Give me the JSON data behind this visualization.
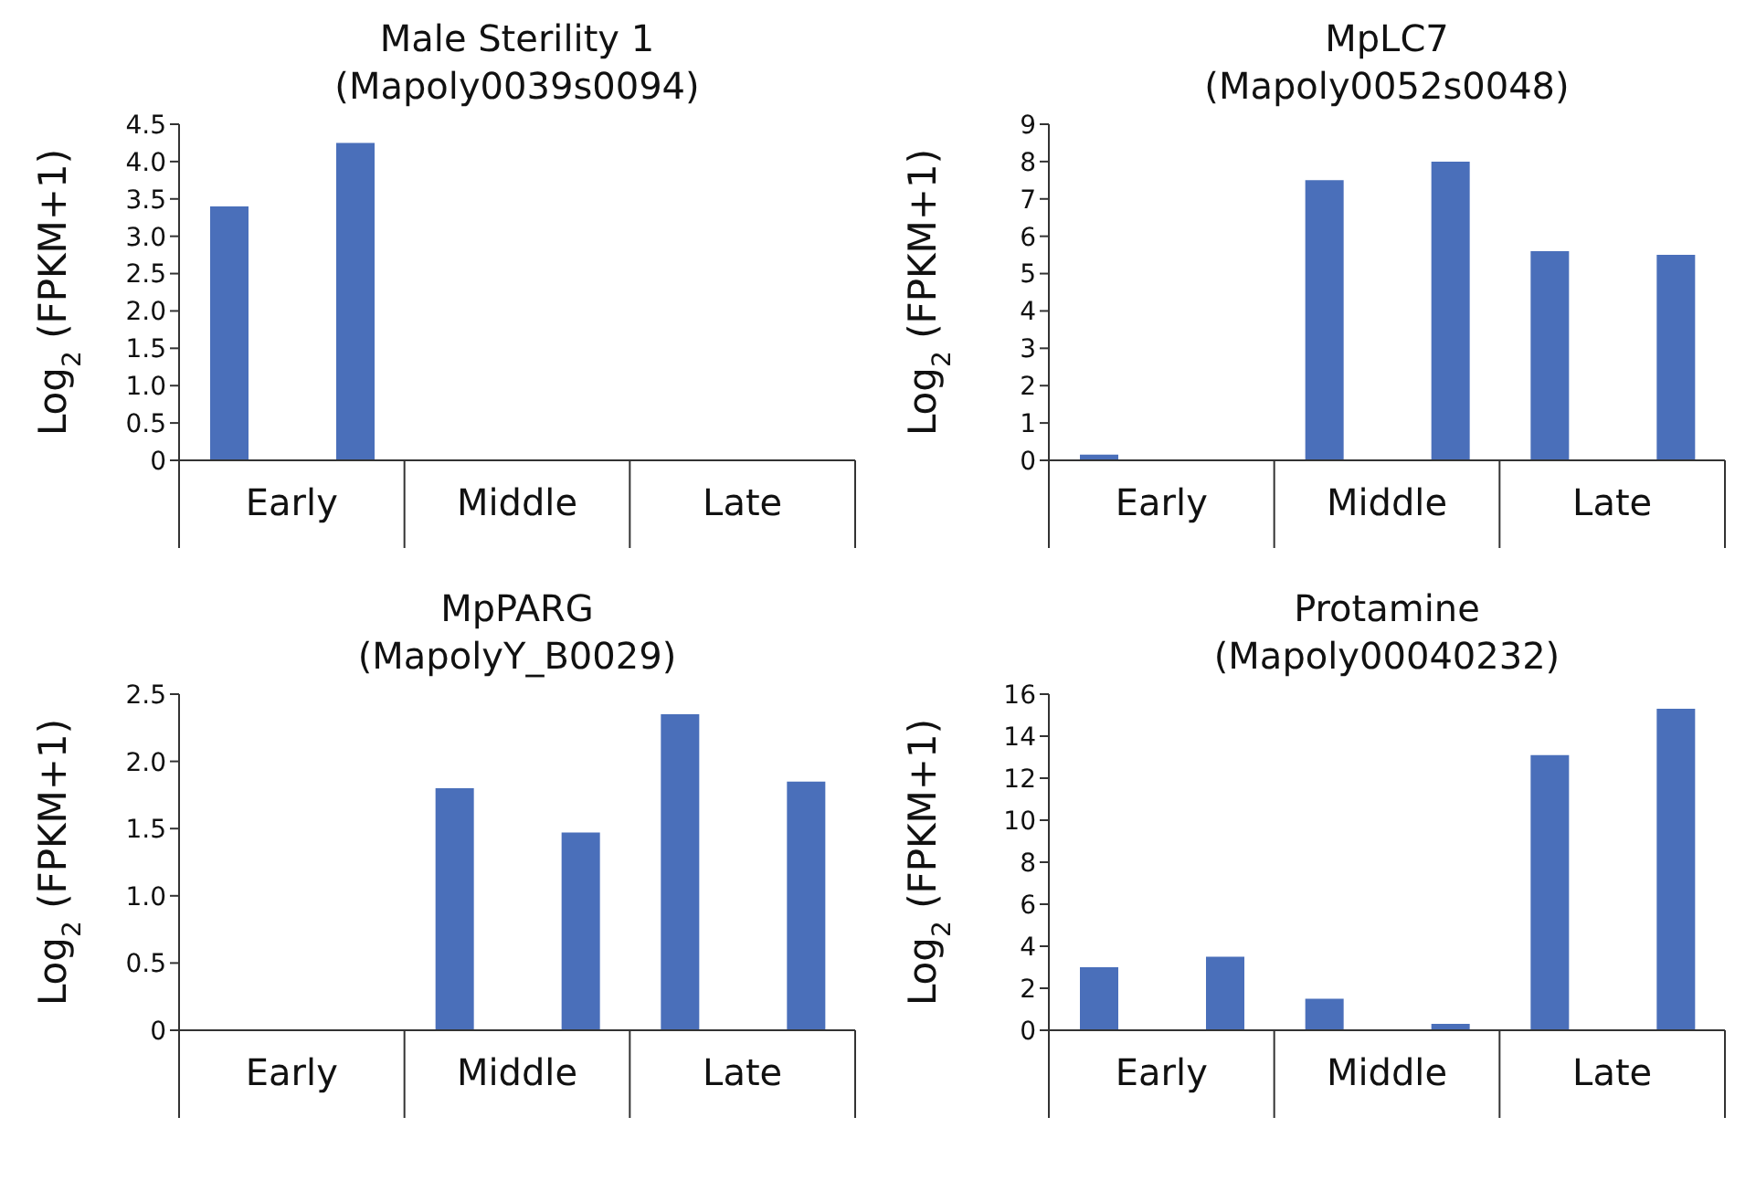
{
  "chart_data": [
    {
      "type": "bar",
      "title": "Male Sterility 1",
      "subtitle": "(Mapoly0039s0094)",
      "ylabel": "Log$_{2}$ (FPKM+1)",
      "categories": [
        "Early",
        "Middle",
        "Late"
      ],
      "series": [
        {
          "color": "#4a6fba",
          "values": [
            3.4,
            0,
            0
          ]
        },
        {
          "color": "#4a6fba",
          "values": [
            4.25,
            0,
            0
          ]
        }
      ],
      "ylim": [
        0,
        4.5
      ],
      "yticks": [
        0,
        0.5,
        {
          "value": 1,
          "label": "1.0"
        },
        1.5,
        {
          "value": 2,
          "label": "2.0"
        },
        2.5,
        {
          "value": 3,
          "label": "3.0"
        },
        3.5,
        {
          "value": 4,
          "label": "4.0"
        },
        4.5
      ]
    },
    {
      "type": "bar",
      "title": "MpLC7",
      "subtitle": "(Mapoly0052s0048)",
      "ylabel": "Log$_{2}$ (FPKM+1)",
      "categories": [
        "Early",
        "Middle",
        "Late"
      ],
      "series": [
        {
          "color": "#4a6fba",
          "values": [
            0.15,
            7.5,
            5.6
          ]
        },
        {
          "color": "#4a6fba",
          "values": [
            0,
            8.0,
            5.5
          ]
        }
      ],
      "ylim": [
        0,
        9
      ],
      "yticks": [
        0,
        1,
        2,
        3,
        4,
        5,
        6,
        7,
        8,
        9
      ]
    },
    {
      "type": "bar",
      "title": "MpPARG",
      "subtitle": "(MapolyY_B0029)",
      "ylabel": "Log$_{2}$ (FPKM+1)",
      "categories": [
        "Early",
        "Middle",
        "Late"
      ],
      "series": [
        {
          "color": "#4a6fba",
          "values": [
            0,
            1.8,
            2.35
          ]
        },
        {
          "color": "#4a6fba",
          "values": [
            0,
            1.47,
            1.85
          ]
        }
      ],
      "ylim": [
        0,
        2.5
      ],
      "yticks": [
        0,
        0.5,
        {
          "value": 1,
          "label": "1.0"
        },
        1.5,
        {
          "value": 2,
          "label": "2.0"
        },
        2.5
      ]
    },
    {
      "type": "bar",
      "title": "Protamine",
      "subtitle": "(Mapoly00040232)",
      "ylabel": "Log$_{2}$ (FPKM+1)",
      "categories": [
        "Early",
        "Middle",
        "Late"
      ],
      "series": [
        {
          "color": "#4a6fba",
          "values": [
            3.0,
            1.5,
            13.1
          ]
        },
        {
          "color": "#4a6fba",
          "values": [
            3.5,
            0.3,
            15.3
          ]
        }
      ],
      "ylim": [
        0,
        16
      ],
      "yticks": [
        0,
        2,
        4,
        6,
        8,
        10,
        12,
        14,
        16
      ]
    }
  ]
}
